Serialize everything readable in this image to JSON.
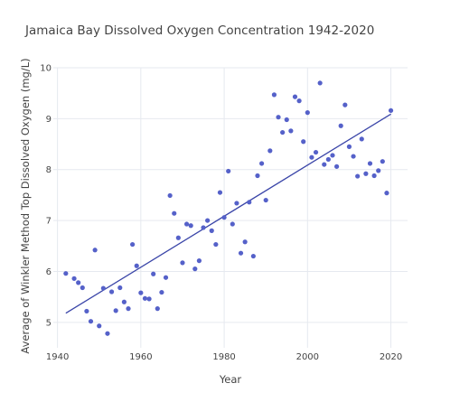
{
  "chart_data": {
    "type": "scatter",
    "title": "Jamaica Bay Dissolved Oxygen Concentration 1942-2020",
    "xlabel": "Year",
    "ylabel": "Average of Winkler Method Top Dissolved Oxygen (mg/L)",
    "xlim": [
      1939,
      2024
    ],
    "ylim": [
      4.5,
      10.0
    ],
    "x_ticks": [
      1940,
      1960,
      1980,
      2000,
      2020
    ],
    "x_tick_labels": [
      "1940",
      "1960",
      "1980",
      "2000",
      "2020"
    ],
    "y_ticks": [
      5,
      6,
      7,
      8,
      9,
      10
    ],
    "y_tick_labels": [
      "5",
      "6",
      "7",
      "8",
      "9",
      "10"
    ],
    "grid": true,
    "legend": "none",
    "marker_color": "#5561c9",
    "trendline_color": "#3a45a8",
    "points": {
      "x": [
        1942,
        1944,
        1945,
        1946,
        1947,
        1948,
        1949,
        1950,
        1951,
        1952,
        1953,
        1954,
        1955,
        1956,
        1957,
        1958,
        1959,
        1960,
        1961,
        1962,
        1963,
        1964,
        1965,
        1966,
        1967,
        1968,
        1969,
        1970,
        1971,
        1972,
        1973,
        1974,
        1975,
        1976,
        1977,
        1978,
        1979,
        1980,
        1981,
        1982,
        1983,
        1984,
        1985,
        1986,
        1987,
        1988,
        1989,
        1990,
        1991,
        1992,
        1993,
        1994,
        1995,
        1996,
        1997,
        1998,
        1999,
        2000,
        2001,
        2002,
        2003,
        2004,
        2005,
        2006,
        2007,
        2008,
        2009,
        2010,
        2011,
        2012,
        2013,
        2014,
        2015,
        2016,
        2017,
        2018,
        2019,
        2020
      ],
      "y": [
        5.96,
        5.86,
        5.78,
        5.68,
        5.22,
        5.02,
        6.42,
        4.93,
        5.67,
        4.78,
        5.6,
        5.23,
        5.68,
        5.4,
        5.27,
        6.53,
        6.11,
        5.58,
        5.47,
        5.46,
        5.95,
        5.27,
        5.59,
        5.88,
        7.49,
        7.14,
        6.66,
        6.17,
        6.93,
        6.9,
        6.05,
        6.21,
        6.86,
        7.0,
        6.8,
        6.53,
        7.55,
        7.06,
        7.97,
        6.93,
        7.34,
        6.36,
        6.58,
        7.36,
        6.3,
        7.88,
        8.12,
        7.4,
        8.37,
        9.47,
        9.03,
        8.73,
        8.98,
        8.76,
        9.43,
        9.35,
        8.55,
        9.12,
        8.24,
        8.34,
        9.7,
        8.1,
        8.2,
        8.28,
        8.06,
        8.86,
        9.27,
        8.45,
        8.26,
        7.87,
        8.6,
        7.92,
        8.12,
        7.88,
        7.98,
        8.16,
        7.54,
        9.16
      ]
    },
    "trendline": {
      "x": [
        1942,
        2020
      ],
      "y": [
        5.18,
        9.09
      ]
    }
  }
}
